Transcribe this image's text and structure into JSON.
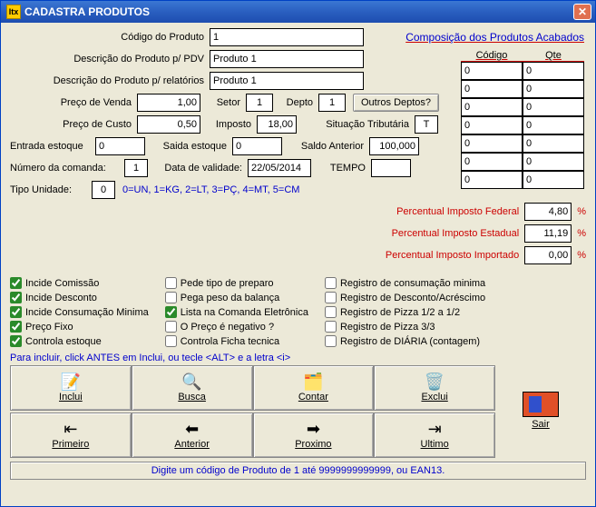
{
  "window": {
    "title": "CADASTRA PRODUTOS",
    "icon": "Itx"
  },
  "labels": {
    "codigo": "Código do Produto",
    "descPDV": "Descrição do Produto p/ PDV",
    "descRel": "Descrição do Produto p/ relatórios",
    "compHeader": "Composição dos Produtos Acabados",
    "colCodigo": "Código",
    "colQte": "Qte",
    "precoVenda": "Preço de Venda",
    "setor": "Setor",
    "depto": "Depto",
    "outrosDeptos": "Outros Deptos?",
    "precoCusto": "Preço de Custo",
    "imposto": "Imposto",
    "situacao": "Situação Tributária",
    "entrada": "Entrada estoque",
    "saida": "Saida estoque",
    "saldo": "Saldo Anterior",
    "comanda": "Número da comanda:",
    "validade": "Data de validade:",
    "tempo": "TEMPO",
    "tipoUnidade": "Tipo Unidade:",
    "unidadeLegenda": "0=UN, 1=KG, 2=LT, 3=PÇ, 4=MT, 5=CM",
    "pFederal": "Percentual Imposto Federal",
    "pEstadual": "Percentual Imposto Estadual",
    "pImportado": "Percentual Imposto Importado",
    "hint": "Para incluir, click ANTES em Inclui, ou tecle <ALT> e a letra <i>",
    "footer": "Digite um código de Produto de 1 até 9999999999999, ou EAN13.",
    "pct": "%"
  },
  "values": {
    "codigo": "1",
    "descPDV": "Produto 1",
    "descRel": "Produto 1",
    "precoVenda": "1,00",
    "setor": "1",
    "depto": "1",
    "precoCusto": "0,50",
    "imposto": "18,00",
    "situacao": "T",
    "entrada": "0",
    "saida": "0",
    "saldo": "100,000",
    "comanda": "1",
    "validade": "22/05/2014",
    "tempo": "",
    "tipoUnidade": "0",
    "pFederal": "4,80",
    "pEstadual": "11,19",
    "pImportado": "0,00"
  },
  "compRows": [
    {
      "codigo": "0",
      "qte": "0"
    },
    {
      "codigo": "0",
      "qte": "0"
    },
    {
      "codigo": "0",
      "qte": "0"
    },
    {
      "codigo": "0",
      "qte": "0"
    },
    {
      "codigo": "0",
      "qte": "0"
    },
    {
      "codigo": "0",
      "qte": "0"
    },
    {
      "codigo": "0",
      "qte": "0"
    }
  ],
  "checks": {
    "col1": [
      {
        "label": "Incide Comissão",
        "checked": true
      },
      {
        "label": "Incide Desconto",
        "checked": true
      },
      {
        "label": "Incide Consumação Minima",
        "checked": true
      },
      {
        "label": "Preço Fixo",
        "checked": true
      },
      {
        "label": "Controla estoque",
        "checked": true
      }
    ],
    "col2": [
      {
        "label": "Pede tipo de preparo",
        "checked": false
      },
      {
        "label": "Pega peso da balança",
        "checked": false
      },
      {
        "label": "Lista na Comanda Eletrônica",
        "checked": true
      },
      {
        "label": "O Preço é negativo ?",
        "checked": false
      },
      {
        "label": "Controla Ficha tecnica",
        "checked": false
      }
    ],
    "col3": [
      {
        "label": "Registro de consumação minima",
        "checked": false
      },
      {
        "label": "Registro de Desconto/Acréscimo",
        "checked": false
      },
      {
        "label": "Registro de Pizza 1/2 a 1/2",
        "checked": false
      },
      {
        "label": "Registro de Pizza 3/3",
        "checked": false
      },
      {
        "label": "Registro de DIÁRIA (contagem)",
        "checked": false
      }
    ]
  },
  "toolbar": {
    "row1": [
      {
        "name": "inclui",
        "label": "Inclui",
        "icon": "📝"
      },
      {
        "name": "busca",
        "label": "Busca",
        "icon": "🔍"
      },
      {
        "name": "contar",
        "label": "Contar",
        "icon": "🗂️"
      },
      {
        "name": "exclui",
        "label": "Exclui",
        "icon": "🗑️"
      }
    ],
    "row2": [
      {
        "name": "primeiro",
        "label": "Primeiro",
        "icon": "⇤"
      },
      {
        "name": "anterior",
        "label": "Anterior",
        "icon": "⬅"
      },
      {
        "name": "proximo",
        "label": "Proximo",
        "icon": "➡"
      },
      {
        "name": "ultimo",
        "label": "Ultimo",
        "icon": "⇥"
      }
    ],
    "sair": "Sair"
  }
}
